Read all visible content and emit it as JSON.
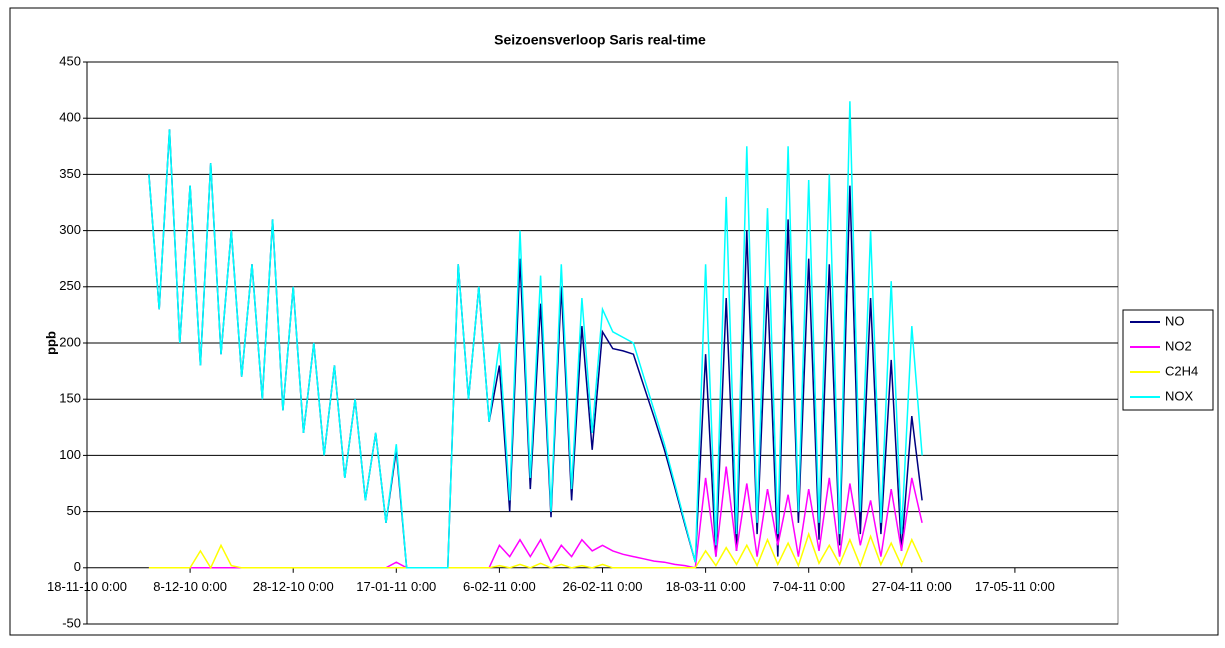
{
  "chart_data": {
    "type": "line",
    "title": "Seizoensverloop Saris real-time",
    "y_label": "ppb",
    "x": [
      "2010-11-30",
      "2010-12-02",
      "2010-12-04",
      "2010-12-06",
      "2010-12-08",
      "2010-12-10",
      "2010-12-12",
      "2010-12-14",
      "2010-12-16",
      "2010-12-18",
      "2010-12-20",
      "2010-12-22",
      "2010-12-24",
      "2010-12-26",
      "2010-12-28",
      "2010-12-30",
      "2011-01-01",
      "2011-01-03",
      "2011-01-05",
      "2011-01-07",
      "2011-01-09",
      "2011-01-11",
      "2011-01-13",
      "2011-01-15",
      "2011-01-17",
      "2011-01-19",
      "2011-01-21",
      "2011-01-23",
      "2011-01-25",
      "2011-01-27",
      "2011-01-29",
      "2011-01-31",
      "2011-02-02",
      "2011-02-04",
      "2011-02-06",
      "2011-02-08",
      "2011-02-10",
      "2011-02-12",
      "2011-02-14",
      "2011-02-16",
      "2011-02-18",
      "2011-02-20",
      "2011-02-22",
      "2011-02-24",
      "2011-02-26",
      "2011-02-28",
      "2011-03-02",
      "2011-03-04",
      "2011-03-06",
      "2011-03-08",
      "2011-03-10",
      "2011-03-12",
      "2011-03-14",
      "2011-03-16",
      "2011-03-18",
      "2011-03-20",
      "2011-03-22",
      "2011-03-24",
      "2011-03-26",
      "2011-03-28",
      "2011-03-30",
      "2011-04-01",
      "2011-04-03",
      "2011-04-05",
      "2011-04-07",
      "2011-04-09",
      "2011-04-11",
      "2011-04-13",
      "2011-04-15",
      "2011-04-17",
      "2011-04-19",
      "2011-04-21",
      "2011-04-23",
      "2011-04-25",
      "2011-04-27",
      "2011-04-29"
    ],
    "series": [
      {
        "name": "NO",
        "color": "#000080",
        "values": [
          350,
          230,
          390,
          200,
          340,
          180,
          360,
          190,
          300,
          170,
          270,
          150,
          310,
          140,
          250,
          120,
          200,
          100,
          180,
          80,
          150,
          60,
          120,
          40,
          105,
          0,
          0,
          0,
          0,
          0,
          270,
          150,
          250,
          130,
          180,
          50,
          275,
          70,
          235,
          45,
          250,
          60,
          215,
          105,
          210,
          195,
          193,
          190,
          162,
          134,
          105,
          72,
          38,
          5,
          190,
          10,
          240,
          15,
          300,
          30,
          250,
          10,
          310,
          40,
          275,
          25,
          270,
          20,
          340,
          30,
          240,
          30,
          185,
          15,
          135,
          60
        ]
      },
      {
        "name": "NO2",
        "color": "#ff00ff",
        "values": [
          0,
          0,
          0,
          0,
          0,
          0,
          0,
          0,
          0,
          0,
          0,
          0,
          0,
          0,
          0,
          0,
          0,
          0,
          0,
          0,
          0,
          0,
          0,
          0,
          5,
          0,
          0,
          0,
          0,
          0,
          0,
          0,
          0,
          0,
          20,
          10,
          25,
          10,
          25,
          5,
          20,
          10,
          25,
          15,
          20,
          15,
          12,
          10,
          8,
          6,
          5,
          3,
          2,
          0,
          80,
          10,
          90,
          15,
          75,
          10,
          70,
          20,
          65,
          10,
          70,
          15,
          80,
          10,
          75,
          20,
          60,
          10,
          70,
          15,
          80,
          40
        ]
      },
      {
        "name": "C2H4",
        "color": "#ffff00",
        "values": [
          0,
          0,
          0,
          0,
          0,
          15,
          0,
          20,
          2,
          0,
          0,
          0,
          0,
          0,
          0,
          0,
          0,
          0,
          0,
          0,
          0,
          0,
          0,
          0,
          0,
          0,
          0,
          0,
          0,
          0,
          0,
          0,
          0,
          0,
          2,
          0,
          3,
          0,
          4,
          0,
          3,
          0,
          2,
          0,
          3,
          0,
          0,
          0,
          0,
          0,
          0,
          0,
          0,
          0,
          15,
          2,
          18,
          3,
          20,
          2,
          25,
          3,
          22,
          2,
          30,
          4,
          20,
          3,
          25,
          2,
          28,
          3,
          22,
          2,
          25,
          5
        ]
      },
      {
        "name": "NOX",
        "color": "#00ffff",
        "values": [
          350,
          230,
          390,
          200,
          340,
          180,
          360,
          190,
          300,
          170,
          270,
          150,
          310,
          140,
          250,
          120,
          200,
          100,
          180,
          80,
          150,
          60,
          120,
          40,
          110,
          0,
          0,
          0,
          0,
          0,
          270,
          150,
          250,
          130,
          200,
          60,
          300,
          80,
          260,
          50,
          270,
          70,
          240,
          120,
          230,
          210,
          205,
          200,
          170,
          140,
          110,
          75,
          40,
          5,
          270,
          20,
          330,
          30,
          375,
          40,
          320,
          30,
          375,
          50,
          345,
          40,
          350,
          30,
          415,
          50,
          300,
          40,
          255,
          30,
          215,
          100
        ]
      }
    ],
    "ylim": [
      -50,
      450
    ],
    "yticks": [
      -50,
      0,
      50,
      100,
      150,
      200,
      250,
      300,
      350,
      400,
      450
    ],
    "xlim": [
      "2010-11-18",
      "2011-06-06"
    ],
    "xticks": [
      {
        "value": "2010-11-18",
        "label": "18-11-10 0:00"
      },
      {
        "value": "2010-12-08",
        "label": "8-12-10 0:00"
      },
      {
        "value": "2010-12-28",
        "label": "28-12-10 0:00"
      },
      {
        "value": "2011-01-17",
        "label": "17-01-11 0:00"
      },
      {
        "value": "2011-02-06",
        "label": "6-02-11 0:00"
      },
      {
        "value": "2011-02-26",
        "label": "26-02-11 0:00"
      },
      {
        "value": "2011-03-18",
        "label": "18-03-11 0:00"
      },
      {
        "value": "2011-04-07",
        "label": "7-04-11 0:00"
      },
      {
        "value": "2011-04-27",
        "label": "27-04-11 0:00"
      },
      {
        "value": "2011-05-17",
        "label": "17-05-11 0:00"
      }
    ],
    "grid": true
  }
}
